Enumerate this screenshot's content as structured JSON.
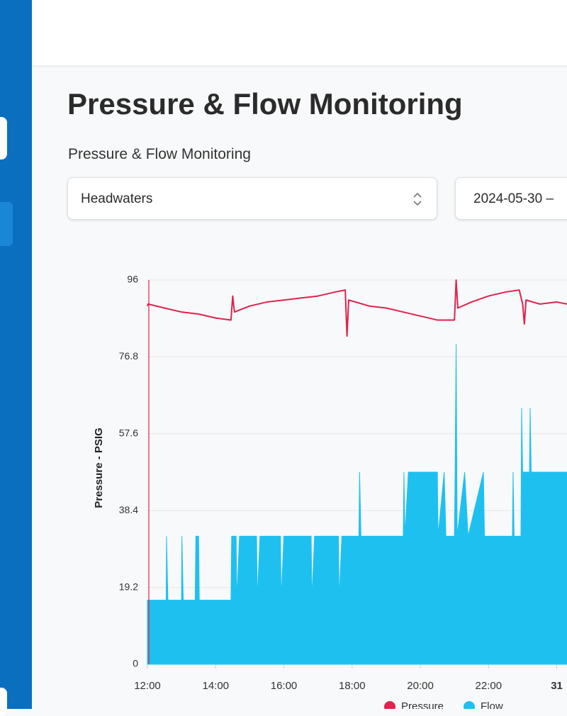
{
  "page": {
    "title": "Pressure & Flow Monitoring",
    "subtitle": "Pressure & Flow Monitoring",
    "site_select": "Headwaters",
    "date_range": "2024-05-30 –"
  },
  "chart_data": {
    "type": "line",
    "y_label": "Pressure - PSIG",
    "xlim": [
      12,
      24.3
    ],
    "xticks": [
      {
        "value": 12,
        "label": "12:00"
      },
      {
        "value": 14,
        "label": "14:00"
      },
      {
        "value": 16,
        "label": "16:00"
      },
      {
        "value": 18,
        "label": "18:00"
      },
      {
        "value": 20,
        "label": "20:00"
      },
      {
        "value": 22,
        "label": "22:00"
      },
      {
        "value": 24,
        "label": "31"
      }
    ],
    "ylim": [
      0,
      96
    ],
    "yticks": [
      0,
      19.2,
      38.4,
      57.6,
      76.8,
      96
    ],
    "grid": true,
    "series": [
      {
        "name": "Pressure",
        "color": "#e0224d",
        "area": false,
        "x": [
          12.0,
          12.02,
          12.5,
          13.0,
          13.5,
          14.0,
          14.45,
          14.5,
          14.55,
          15.0,
          15.5,
          16.0,
          16.5,
          17.0,
          17.5,
          17.8,
          17.85,
          17.9,
          18.5,
          19.0,
          19.5,
          20.0,
          20.5,
          21.0,
          21.05,
          21.1,
          21.5,
          22.0,
          22.5,
          22.9,
          23.0,
          23.05,
          23.1,
          23.5,
          24.0,
          24.3
        ],
        "values": [
          89.5,
          90,
          89,
          88,
          87.5,
          86.5,
          86,
          92,
          88,
          89.5,
          90.5,
          91,
          91.5,
          92,
          93,
          93.5,
          82,
          91,
          89.5,
          89,
          88,
          87,
          86,
          86,
          96,
          89,
          90.5,
          92,
          93,
          93.5,
          90,
          85,
          91,
          90,
          90.5,
          90
        ]
      },
      {
        "name": "Flow",
        "color": "#1ec0f0",
        "area": true,
        "x": [
          12.0,
          12.55,
          12.56,
          12.6,
          13.0,
          13.01,
          13.05,
          13.4,
          13.42,
          13.5,
          13.52,
          14.45,
          14.47,
          14.6,
          14.62,
          14.7,
          15.2,
          15.22,
          15.3,
          15.9,
          15.92,
          16.0,
          16.8,
          16.82,
          16.9,
          17.6,
          17.62,
          17.7,
          18.2,
          18.22,
          18.26,
          19.5,
          19.52,
          19.55,
          19.65,
          20.5,
          20.52,
          20.7,
          20.75,
          21.0,
          21.02,
          21.05,
          21.08,
          21.3,
          21.4,
          21.85,
          21.88,
          22.7,
          22.72,
          22.75,
          22.95,
          22.97,
          23.0,
          23.2,
          23.22,
          23.25,
          24.3
        ],
        "values": [
          16,
          16,
          32,
          16,
          16,
          32,
          16,
          16,
          32,
          32,
          16,
          16,
          32,
          32,
          16,
          32,
          32,
          16,
          32,
          32,
          16,
          32,
          32,
          16,
          32,
          32,
          16,
          32,
          32,
          48,
          32,
          32,
          48,
          32,
          48,
          48,
          32,
          48,
          32,
          32,
          48,
          80,
          32,
          48,
          32,
          48,
          32,
          32,
          48,
          32,
          32,
          64,
          48,
          48,
          64,
          48,
          48
        ]
      }
    ]
  }
}
